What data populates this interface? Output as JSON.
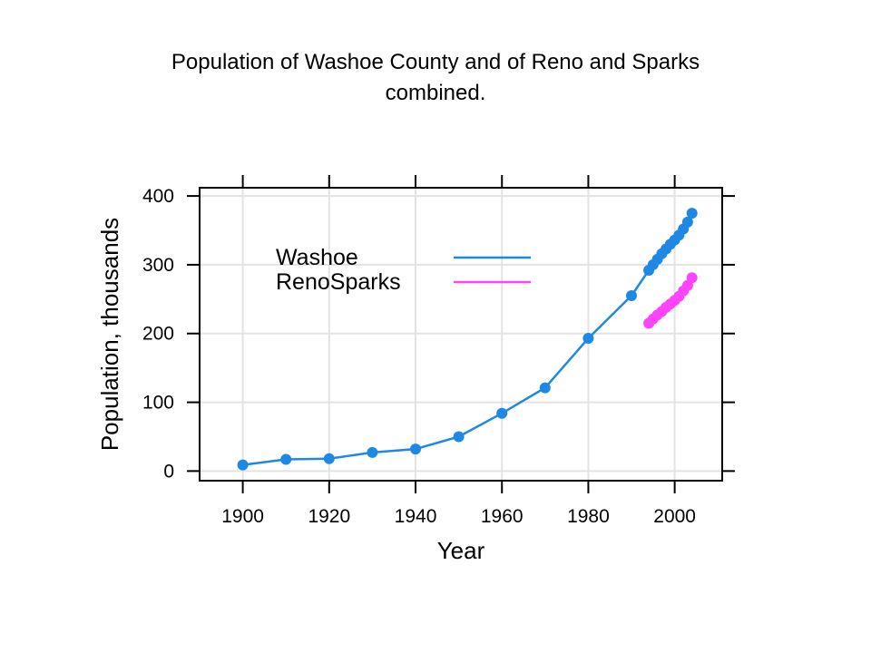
{
  "title_lines": [
    "Population of Washoe County and of Reno and Sparks",
    "combined."
  ],
  "chart_data": {
    "type": "line",
    "title": "Population of Washoe County and of Reno and Sparks combined.",
    "xlabel": "Year",
    "ylabel": "Population, thousands",
    "xlim": [
      1890,
      2011
    ],
    "ylim": [
      -14,
      412
    ],
    "x_ticks": [
      1900,
      1920,
      1940,
      1960,
      1980,
      2000
    ],
    "y_ticks": [
      0,
      100,
      200,
      300,
      400
    ],
    "grid": true,
    "legend_position": "top-left",
    "series": [
      {
        "name": "Washoe",
        "color": "#1e88e5",
        "points": [
          [
            1900,
            9
          ],
          [
            1910,
            17
          ],
          [
            1920,
            18
          ],
          [
            1930,
            27
          ],
          [
            1940,
            32
          ],
          [
            1950,
            50
          ],
          [
            1960,
            84
          ],
          [
            1970,
            121
          ],
          [
            1980,
            193
          ],
          [
            1990,
            255
          ],
          [
            1994,
            292
          ],
          [
            1995,
            300
          ],
          [
            1996,
            308
          ],
          [
            1997,
            316
          ],
          [
            1998,
            323
          ],
          [
            1999,
            330
          ],
          [
            2000,
            336
          ],
          [
            2001,
            343
          ],
          [
            2002,
            352
          ],
          [
            2003,
            362
          ],
          [
            2004,
            375
          ]
        ]
      },
      {
        "name": "RenoSparks",
        "color": "#ff44ff",
        "points": [
          [
            1994,
            215
          ],
          [
            1995,
            221
          ],
          [
            1996,
            227
          ],
          [
            1997,
            232
          ],
          [
            1998,
            238
          ],
          [
            1999,
            243
          ],
          [
            2000,
            248
          ],
          [
            2001,
            254
          ],
          [
            2002,
            262
          ],
          [
            2003,
            270
          ],
          [
            2004,
            281
          ]
        ]
      }
    ]
  }
}
